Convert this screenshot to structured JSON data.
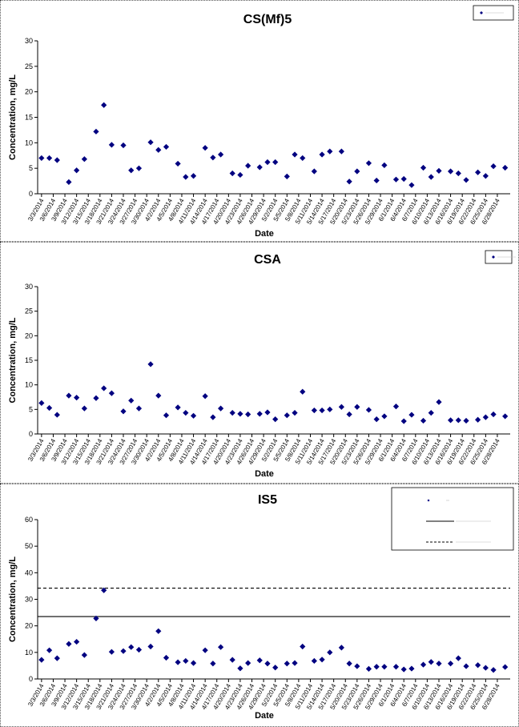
{
  "chart_data": [
    {
      "type": "scatter",
      "title": "CS(Mf)5",
      "xlabel": "Date",
      "ylabel": "Concentration, mg/L",
      "ylim": [
        0,
        30
      ],
      "yticks": [
        0,
        5,
        10,
        15,
        20,
        25,
        30
      ],
      "x_tick_labels": [
        "3/3/2014",
        "3/6/2014",
        "3/9/2014",
        "3/12/2014",
        "3/15/2014",
        "3/18/2014",
        "3/21/2014",
        "3/24/2014",
        "3/27/2014",
        "3/30/2014",
        "4/2/2014",
        "4/5/2014",
        "4/8/2014",
        "4/11/2014",
        "4/14/2014",
        "4/17/2014",
        "4/20/2014",
        "4/23/2014",
        "4/26/2014",
        "4/29/2014",
        "5/2/2014",
        "5/5/2014",
        "5/8/2014",
        "5/11/2014",
        "5/14/2014",
        "5/17/2014",
        "5/20/2014",
        "5/23/2014",
        "5/26/2014",
        "5/29/2014",
        "6/1/2014",
        "6/4/2014",
        "6/7/2014",
        "6/10/2014",
        "6/13/2014",
        "6/16/2014",
        "6/19/2014",
        "6/22/2014",
        "6/25/2014",
        "6/28/2014"
      ],
      "legend": {
        "position": "top-right",
        "entries": [
          ""
        ]
      },
      "series": [
        {
          "color": "#000080",
          "points": [
            [
              "3/3/2014",
              7.0
            ],
            [
              "3/5/2014",
              7.0
            ],
            [
              "3/7/2014",
              6.6
            ],
            [
              "3/10/2014",
              2.3
            ],
            [
              "3/12/2014",
              4.6
            ],
            [
              "3/14/2014",
              6.8
            ],
            [
              "3/17/2014",
              12.2
            ],
            [
              "3/19/2014",
              17.4
            ],
            [
              "3/21/2014",
              9.6
            ],
            [
              "3/24/2014",
              9.5
            ],
            [
              "3/26/2014",
              4.6
            ],
            [
              "3/28/2014",
              5.0
            ],
            [
              "3/31/2014",
              10.1
            ],
            [
              "4/2/2014",
              8.6
            ],
            [
              "4/4/2014",
              9.2
            ],
            [
              "4/7/2014",
              5.9
            ],
            [
              "4/9/2014",
              3.3
            ],
            [
              "4/11/2014",
              3.5
            ],
            [
              "4/14/2014",
              9.0
            ],
            [
              "4/16/2014",
              7.1
            ],
            [
              "4/18/2014",
              7.7
            ],
            [
              "4/21/2014",
              4.0
            ],
            [
              "4/23/2014",
              3.7
            ],
            [
              "4/25/2014",
              5.5
            ],
            [
              "4/28/2014",
              5.2
            ],
            [
              "4/30/2014",
              6.2
            ],
            [
              "5/2/2014",
              6.2
            ],
            [
              "5/5/2014",
              3.4
            ],
            [
              "5/7/2014",
              7.7
            ],
            [
              "5/9/2014",
              7.0
            ],
            [
              "5/12/2014",
              4.4
            ],
            [
              "5/14/2014",
              7.7
            ],
            [
              "5/16/2014",
              8.3
            ],
            [
              "5/19/2014",
              8.3
            ],
            [
              "5/21/2014",
              2.4
            ],
            [
              "5/23/2014",
              4.4
            ],
            [
              "5/26/2014",
              6.0
            ],
            [
              "5/28/2014",
              2.6
            ],
            [
              "5/30/2014",
              5.6
            ],
            [
              "6/2/2014",
              2.8
            ],
            [
              "6/4/2014",
              2.9
            ],
            [
              "6/6/2014",
              1.7
            ],
            [
              "6/9/2014",
              5.1
            ],
            [
              "6/11/2014",
              3.3
            ],
            [
              "6/13/2014",
              4.5
            ],
            [
              "6/16/2014",
              4.4
            ],
            [
              "6/18/2014",
              4.0
            ],
            [
              "6/20/2014",
              2.7
            ],
            [
              "6/23/2014",
              4.2
            ],
            [
              "6/25/2014",
              3.5
            ],
            [
              "6/27/2014",
              5.4
            ],
            [
              "6/30/2014",
              5.1
            ]
          ]
        }
      ]
    },
    {
      "type": "scatter",
      "title": "CSA",
      "xlabel": "Date",
      "ylabel": "Concentration, mg/L",
      "ylim": [
        0,
        30
      ],
      "yticks": [
        0,
        5,
        10,
        15,
        20,
        25,
        30
      ],
      "x_tick_labels": [
        "3/3/2014",
        "3/6/2014",
        "3/9/2014",
        "3/12/2014",
        "3/15/2014",
        "3/18/2014",
        "3/21/2014",
        "3/24/2014",
        "3/27/2014",
        "3/30/2014",
        "4/2/2014",
        "4/5/2014",
        "4/8/2014",
        "4/11/2014",
        "4/14/2014",
        "4/17/2014",
        "4/20/2014",
        "4/23/2014",
        "4/26/2014",
        "4/29/2014",
        "5/2/2014",
        "5/5/2014",
        "5/8/2014",
        "5/11/2014",
        "5/14/2014",
        "5/17/2014",
        "5/20/2014",
        "5/23/2014",
        "5/26/2014",
        "5/29/2014",
        "6/1/2014",
        "6/4/2014",
        "6/7/2014",
        "6/10/2014",
        "6/13/2014",
        "6/16/2014",
        "6/19/2014",
        "6/22/2014",
        "6/25/2014",
        "6/28/2014"
      ],
      "legend": {
        "position": "top-right",
        "entries": [
          ""
        ]
      },
      "series": [
        {
          "color": "#000080",
          "points": [
            [
              "3/3/2014",
              6.3
            ],
            [
              "3/5/2014",
              5.3
            ],
            [
              "3/7/2014",
              3.9
            ],
            [
              "3/10/2014",
              7.8
            ],
            [
              "3/12/2014",
              7.4
            ],
            [
              "3/14/2014",
              5.2
            ],
            [
              "3/17/2014",
              7.3
            ],
            [
              "3/19/2014",
              9.3
            ],
            [
              "3/21/2014",
              8.3
            ],
            [
              "3/24/2014",
              4.6
            ],
            [
              "3/26/2014",
              6.8
            ],
            [
              "3/28/2014",
              5.2
            ],
            [
              "3/31/2014",
              14.2
            ],
            [
              "4/2/2014",
              7.8
            ],
            [
              "4/4/2014",
              3.8
            ],
            [
              "4/7/2014",
              5.4
            ],
            [
              "4/9/2014",
              4.3
            ],
            [
              "4/11/2014",
              3.7
            ],
            [
              "4/14/2014",
              7.7
            ],
            [
              "4/16/2014",
              3.4
            ],
            [
              "4/18/2014",
              5.2
            ],
            [
              "4/21/2014",
              4.3
            ],
            [
              "4/23/2014",
              4.1
            ],
            [
              "4/25/2014",
              4.0
            ],
            [
              "4/28/2014",
              4.1
            ],
            [
              "4/30/2014",
              4.4
            ],
            [
              "5/2/2014",
              3.0
            ],
            [
              "5/5/2014",
              3.8
            ],
            [
              "5/7/2014",
              4.3
            ],
            [
              "5/9/2014",
              8.6
            ],
            [
              "5/12/2014",
              4.8
            ],
            [
              "5/14/2014",
              4.8
            ],
            [
              "5/16/2014",
              5.0
            ],
            [
              "5/19/2014",
              5.5
            ],
            [
              "5/21/2014",
              4.0
            ],
            [
              "5/23/2014",
              5.5
            ],
            [
              "5/26/2014",
              4.9
            ],
            [
              "5/28/2014",
              3.0
            ],
            [
              "5/30/2014",
              3.6
            ],
            [
              "6/2/2014",
              5.6
            ],
            [
              "6/4/2014",
              2.6
            ],
            [
              "6/6/2014",
              3.9
            ],
            [
              "6/9/2014",
              2.7
            ],
            [
              "6/11/2014",
              4.3
            ],
            [
              "6/13/2014",
              6.5
            ],
            [
              "6/16/2014",
              2.8
            ],
            [
              "6/18/2014",
              2.8
            ],
            [
              "6/20/2014",
              2.7
            ],
            [
              "6/23/2014",
              2.9
            ],
            [
              "6/25/2014",
              3.4
            ],
            [
              "6/27/2014",
              4.0
            ],
            [
              "6/30/2014",
              3.6
            ]
          ]
        }
      ]
    },
    {
      "type": "scatter",
      "title": "IS5",
      "xlabel": "Date",
      "ylabel": "Concentration, mg/L",
      "ylim": [
        0,
        60
      ],
      "yticks": [
        0,
        10,
        20,
        30,
        40,
        50,
        60
      ],
      "x_tick_labels": [
        "3/3/2014",
        "3/6/2014",
        "3/9/2014",
        "3/12/2014",
        "3/15/2014",
        "3/18/2014",
        "3/21/2014",
        "3/24/2014",
        "3/27/2014",
        "3/30/2014",
        "4/2/2014",
        "4/5/2014",
        "4/8/2014",
        "4/11/2014",
        "4/14/2014",
        "4/17/2014",
        "4/20/2014",
        "4/23/2014",
        "4/26/2014",
        "4/29/2014",
        "5/2/2014",
        "5/5/2014",
        "5/8/2014",
        "5/11/2014",
        "5/14/2014",
        "5/17/2014",
        "5/20/2014",
        "5/23/2014",
        "5/26/2014",
        "5/29/2014",
        "6/1/2014",
        "6/4/2014",
        "6/7/2014",
        "6/10/2014",
        "6/13/2014",
        "6/16/2014",
        "6/19/2014",
        "6/22/2014",
        "6/25/2014",
        "6/28/2014"
      ],
      "legend": {
        "position": "top-right",
        "entries": [
          "",
          "",
          ""
        ]
      },
      "reference_lines": [
        {
          "value": 23.5,
          "style": "solid",
          "color": "#000000"
        },
        {
          "value": 34.2,
          "style": "dashed",
          "color": "#000000"
        }
      ],
      "series": [
        {
          "color": "#000080",
          "points": [
            [
              "3/3/2014",
              7.2
            ],
            [
              "3/5/2014",
              10.8
            ],
            [
              "3/7/2014",
              7.8
            ],
            [
              "3/10/2014",
              13.2
            ],
            [
              "3/12/2014",
              14.0
            ],
            [
              "3/14/2014",
              9.0
            ],
            [
              "3/17/2014",
              22.8
            ],
            [
              "3/19/2014",
              33.4
            ],
            [
              "3/21/2014",
              10.2
            ],
            [
              "3/24/2014",
              10.5
            ],
            [
              "3/26/2014",
              12.0
            ],
            [
              "3/28/2014",
              11.0
            ],
            [
              "3/31/2014",
              12.2
            ],
            [
              "4/2/2014",
              18.0
            ],
            [
              "4/4/2014",
              8.0
            ],
            [
              "4/7/2014",
              6.3
            ],
            [
              "4/9/2014",
              6.8
            ],
            [
              "4/11/2014",
              6.0
            ],
            [
              "4/14/2014",
              10.8
            ],
            [
              "4/16/2014",
              5.8
            ],
            [
              "4/18/2014",
              12.0
            ],
            [
              "4/21/2014",
              7.2
            ],
            [
              "4/23/2014",
              4.0
            ],
            [
              "4/25/2014",
              6.0
            ],
            [
              "4/28/2014",
              7.0
            ],
            [
              "4/30/2014",
              5.8
            ],
            [
              "5/2/2014",
              4.3
            ],
            [
              "5/5/2014",
              5.8
            ],
            [
              "5/7/2014",
              6.0
            ],
            [
              "5/9/2014",
              12.2
            ],
            [
              "5/12/2014",
              6.8
            ],
            [
              "5/14/2014",
              7.3
            ],
            [
              "5/16/2014",
              10.0
            ],
            [
              "5/19/2014",
              11.8
            ],
            [
              "5/21/2014",
              5.8
            ],
            [
              "5/23/2014",
              4.8
            ],
            [
              "5/26/2014",
              3.8
            ],
            [
              "5/28/2014",
              4.6
            ],
            [
              "5/30/2014",
              4.6
            ],
            [
              "6/2/2014",
              4.6
            ],
            [
              "6/4/2014",
              3.6
            ],
            [
              "6/6/2014",
              3.9
            ],
            [
              "6/9/2014",
              5.4
            ],
            [
              "6/11/2014",
              6.4
            ],
            [
              "6/13/2014",
              5.8
            ],
            [
              "6/16/2014",
              5.8
            ],
            [
              "6/18/2014",
              7.8
            ],
            [
              "6/20/2014",
              4.8
            ],
            [
              "6/23/2014",
              5.2
            ],
            [
              "6/25/2014",
              4.2
            ],
            [
              "6/27/2014",
              3.4
            ],
            [
              "6/30/2014",
              4.5
            ]
          ]
        }
      ]
    }
  ]
}
